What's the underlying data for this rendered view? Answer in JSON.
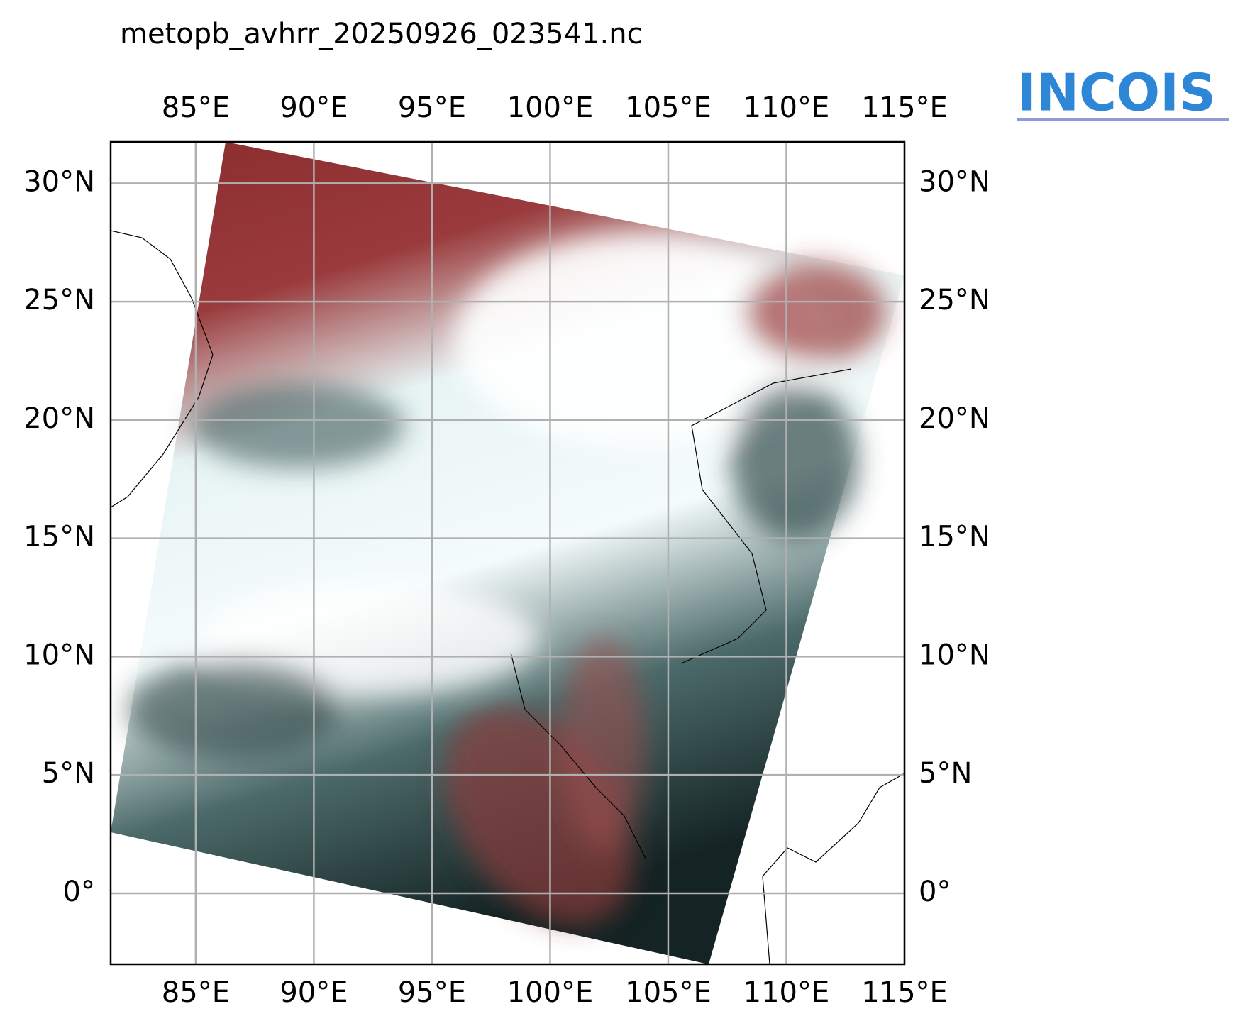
{
  "chart_data": {
    "type": "map",
    "title": "metopb_avhrr_20250926_023541.nc",
    "logo": "INCOIS",
    "xlim": [
      81.4,
      115
    ],
    "ylim": [
      -3,
      31.75
    ],
    "xticks": [
      {
        "value": 85,
        "label": "85°E"
      },
      {
        "value": 90,
        "label": "90°E"
      },
      {
        "value": 95,
        "label": "95°E"
      },
      {
        "value": 100,
        "label": "100°E"
      },
      {
        "value": 105,
        "label": "105°E"
      },
      {
        "value": 110,
        "label": "110°E"
      },
      {
        "value": 115,
        "label": "115°E"
      }
    ],
    "yticks": [
      {
        "value": 0,
        "label": "0°"
      },
      {
        "value": 5,
        "label": "5°N"
      },
      {
        "value": 10,
        "label": "10°N"
      },
      {
        "value": 15,
        "label": "15°N"
      },
      {
        "value": 20,
        "label": "20°N"
      },
      {
        "value": 25,
        "label": "25°N"
      },
      {
        "value": 30,
        "label": "30°N"
      }
    ],
    "grid": true
  }
}
